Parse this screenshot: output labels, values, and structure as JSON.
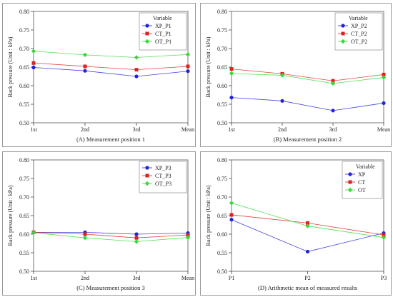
{
  "chart_data": [
    {
      "type": "line",
      "title": "(A) Measurement position 1",
      "ylabel": "Back pressure (Unit : kPa)",
      "xlabel": "",
      "categories": [
        "1st",
        "2nd",
        "3rd",
        "Mean"
      ],
      "ylim": [
        0.5,
        0.8
      ],
      "yticks": [
        "0.50",
        "0.55",
        "0.60",
        "0.65",
        "0.70",
        "0.75",
        "0.80"
      ],
      "grid": false,
      "legend_title": "Variable",
      "legend_position": "top-right",
      "series": [
        {
          "name": "XP_P1",
          "color": "#2222dd",
          "marker": "circle",
          "values": [
            0.649,
            0.64,
            0.625,
            0.639
          ]
        },
        {
          "name": "CT_P1",
          "color": "#e02020",
          "marker": "square",
          "values": [
            0.661,
            0.652,
            0.643,
            0.652
          ]
        },
        {
          "name": "OT_P1",
          "color": "#33dd33",
          "marker": "diamond",
          "values": [
            0.693,
            0.683,
            0.676,
            0.684
          ]
        }
      ]
    },
    {
      "type": "line",
      "title": "(B) Measurement position 2",
      "ylabel": "Back pressure (Unit : kPa)",
      "xlabel": "",
      "categories": [
        "1st",
        "2nd",
        "3rd",
        "Mean"
      ],
      "ylim": [
        0.5,
        0.8
      ],
      "yticks": [
        "0.50",
        "0.55",
        "0.60",
        "0.65",
        "0.70",
        "0.75",
        "0.80"
      ],
      "grid": false,
      "legend_title": "Variable",
      "legend_position": "top-right",
      "series": [
        {
          "name": "XP_P2",
          "color": "#2222dd",
          "marker": "circle",
          "values": [
            0.568,
            0.559,
            0.533,
            0.553
          ]
        },
        {
          "name": "CT_P2",
          "color": "#e02020",
          "marker": "square",
          "values": [
            0.645,
            0.632,
            0.613,
            0.63
          ]
        },
        {
          "name": "OT_P2",
          "color": "#33dd33",
          "marker": "diamond",
          "values": [
            0.633,
            0.628,
            0.606,
            0.622
          ]
        }
      ]
    },
    {
      "type": "line",
      "title": "(C) Measurement position 3",
      "ylabel": "Back pressure (Unit : kPa)",
      "xlabel": "",
      "categories": [
        "1st",
        "2nd",
        "3rd",
        "Mean"
      ],
      "ylim": [
        0.5,
        0.8
      ],
      "yticks": [
        "0.50",
        "0.55",
        "0.60",
        "0.65",
        "0.70",
        "0.75",
        "0.80"
      ],
      "grid": false,
      "legend_title": "",
      "legend_position": "top-right",
      "series": [
        {
          "name": "XP_P3",
          "color": "#2222dd",
          "marker": "circle",
          "values": [
            0.605,
            0.605,
            0.6,
            0.603
          ]
        },
        {
          "name": "CT_P3",
          "color": "#e02020",
          "marker": "square",
          "values": [
            0.605,
            0.6,
            0.59,
            0.598
          ]
        },
        {
          "name": "OT_P3",
          "color": "#33dd33",
          "marker": "diamond",
          "values": [
            0.604,
            0.59,
            0.58,
            0.591
          ]
        }
      ]
    },
    {
      "type": "line",
      "title": "(D) Arithmetic mean of measured results",
      "ylabel": "Back pressure (Unit : kPa)",
      "xlabel": "",
      "categories": [
        "P1",
        "P2",
        "P3"
      ],
      "ylim": [
        0.5,
        0.8
      ],
      "yticks": [
        "0.50",
        "0.55",
        "0.60",
        "0.65",
        "0.70",
        "0.75",
        "0.80"
      ],
      "grid": false,
      "legend_title": "Variable",
      "legend_position": "top-right",
      "series": [
        {
          "name": "XP",
          "color": "#2222dd",
          "marker": "circle",
          "values": [
            0.639,
            0.553,
            0.603
          ]
        },
        {
          "name": "CT",
          "color": "#e02020",
          "marker": "square",
          "values": [
            0.652,
            0.63,
            0.598
          ]
        },
        {
          "name": "OT",
          "color": "#33dd33",
          "marker": "diamond",
          "values": [
            0.684,
            0.622,
            0.591
          ]
        }
      ]
    }
  ]
}
